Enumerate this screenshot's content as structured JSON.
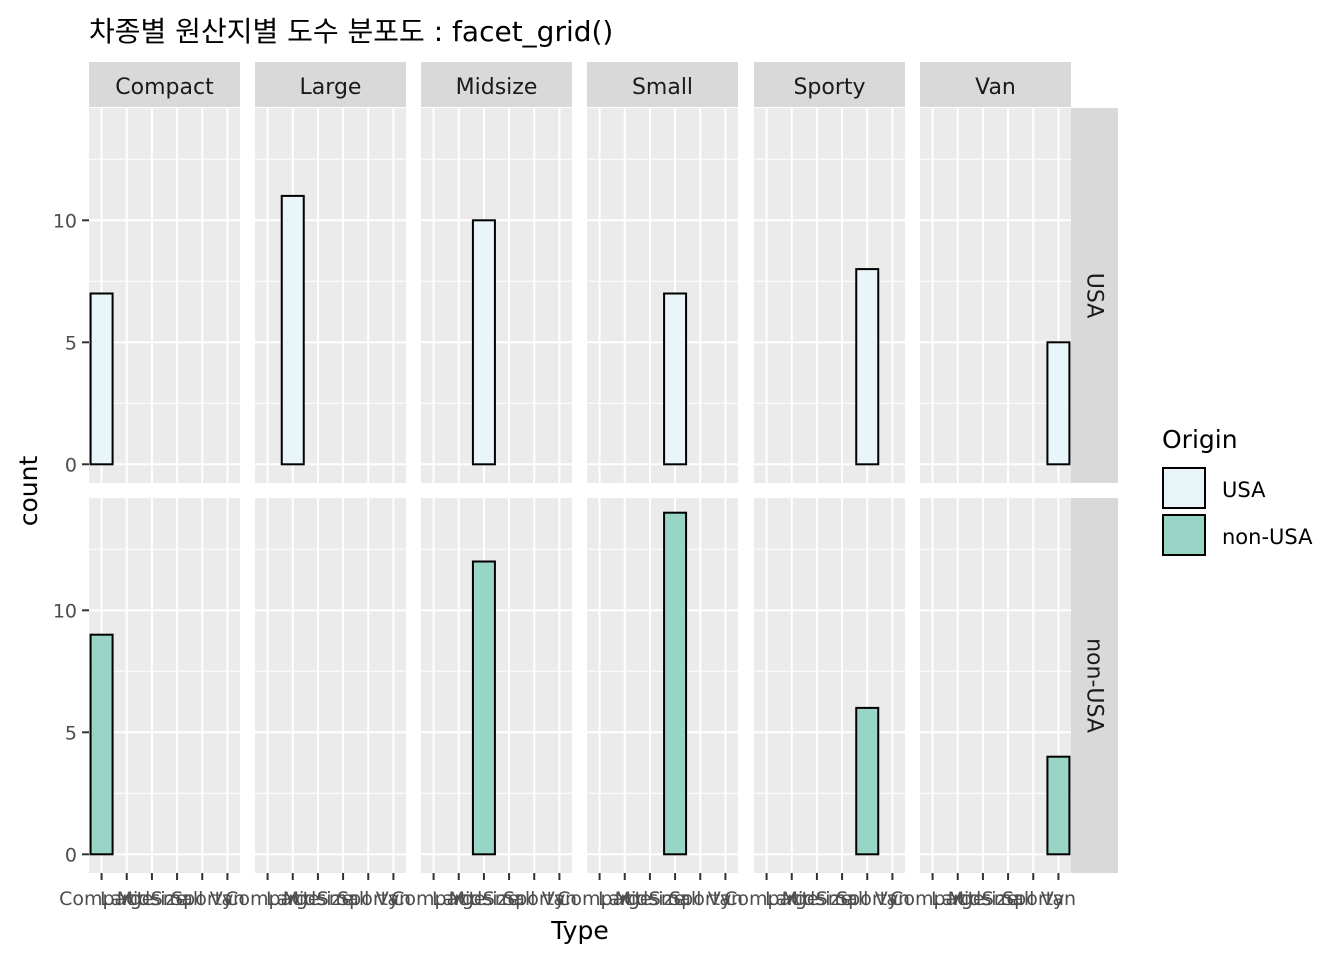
{
  "chart_data": {
    "type": "bar",
    "title": "차종별 원산지별 도수 분포도 : facet_grid()",
    "xlabel": "Type",
    "ylabel": "count",
    "categories": [
      "Compact",
      "Large",
      "Midsize",
      "Small",
      "Sporty",
      "Van"
    ],
    "facet_cols": [
      "Compact",
      "Large",
      "Midsize",
      "Small",
      "Sporty",
      "Van"
    ],
    "facet_rows": [
      "USA",
      "non-USA"
    ],
    "ylim": [
      0,
      14.7
    ],
    "yticks": [
      0,
      5,
      10
    ],
    "grid": true,
    "legend": {
      "title": "Origin",
      "position": "right",
      "entries": [
        "USA",
        "non-USA"
      ]
    },
    "colors": {
      "USA": "#E8F5F9",
      "non-USA": "#99D5C7",
      "panel": "#EBEBEB",
      "strip": "#D9D9D9",
      "bar_outline": "#000000"
    },
    "series": [
      {
        "name": "USA",
        "values": [
          7,
          11,
          10,
          7,
          8,
          5
        ]
      },
      {
        "name": "non-USA",
        "values": [
          9,
          0,
          12,
          14,
          6,
          4
        ]
      }
    ]
  }
}
